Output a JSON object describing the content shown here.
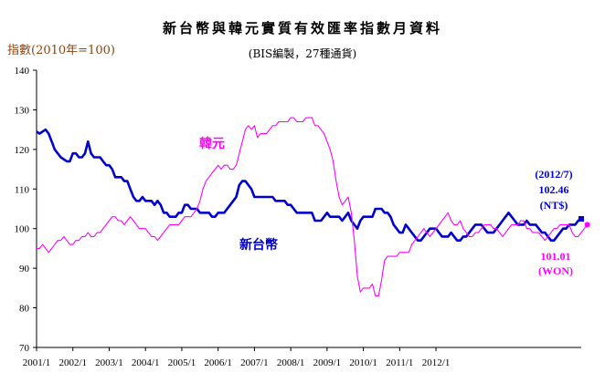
{
  "chart_data": {
    "type": "line",
    "title": "新台幣與韓元實質有效匯率指數月資料",
    "subtitle": "(BIS編製，27種通貨)",
    "ylabel": "指數(2010年=100)",
    "ylim": [
      70,
      140
    ],
    "yticks": [
      70,
      80,
      90,
      100,
      110,
      120,
      130,
      140
    ],
    "x_range": [
      "2001/1",
      "2012/7"
    ],
    "xticks": [
      "2001/1",
      "2002/1",
      "2003/1",
      "2004/1",
      "2005/1",
      "2006/1",
      "2007/1",
      "2008/1",
      "2009/1",
      "2010/1",
      "2011/1",
      "2012/1"
    ],
    "grid": false,
    "series": [
      {
        "name": "新台幣",
        "color": "#0000cc",
        "values": [
          124.5,
          124,
          124.5,
          125,
          124,
          122,
          120,
          119,
          118,
          117.5,
          117,
          117,
          119,
          119,
          118,
          118,
          119,
          122,
          119,
          118,
          118,
          118,
          117,
          116,
          116,
          115,
          113,
          113,
          113,
          112,
          112,
          110,
          108,
          107,
          107,
          108,
          107,
          107,
          107,
          106,
          107,
          106,
          104,
          104,
          103,
          103,
          103,
          104,
          104,
          106,
          106,
          105,
          105,
          105,
          104,
          104,
          104,
          104,
          103,
          103,
          104,
          104,
          104,
          105,
          106,
          107,
          108,
          111,
          112,
          112,
          111,
          110,
          108,
          108,
          108,
          108,
          108,
          108,
          108,
          107,
          107,
          107,
          107,
          106,
          106,
          105,
          104,
          104,
          104,
          104,
          104,
          104,
          102,
          102,
          102,
          103,
          104,
          103,
          103,
          103,
          103,
          102,
          103,
          104,
          102,
          101,
          100,
          102,
          103,
          103,
          103,
          103,
          105,
          105,
          105,
          104,
          104,
          103,
          101,
          100,
          99,
          99,
          101,
          100,
          99,
          98,
          97,
          97,
          98,
          99,
          100,
          100,
          100,
          99,
          98,
          98,
          98,
          99,
          98,
          97,
          97,
          98,
          98,
          99,
          100,
          101,
          101,
          101,
          100,
          99,
          99,
          99,
          100,
          101,
          102,
          103,
          104,
          103,
          102,
          101,
          101,
          101,
          102,
          101,
          101,
          101,
          100,
          99,
          99,
          98,
          97,
          97,
          98,
          99,
          100,
          100,
          101,
          101,
          101,
          102,
          102.46
        ],
        "label_lines": [
          "(2012/7)",
          "102.46",
          "(NT$)"
        ]
      },
      {
        "name": "韓元",
        "color": "#ff00ff",
        "values": [
          95,
          95,
          96,
          95,
          94,
          95,
          96,
          97,
          97,
          98,
          97,
          96,
          96,
          97,
          97,
          98,
          98,
          99,
          98,
          98,
          99,
          99,
          100,
          101,
          102,
          103,
          103,
          102,
          102,
          101,
          102,
          103,
          102,
          101,
          100,
          100,
          100,
          99,
          98,
          98,
          97,
          98,
          99,
          100,
          101,
          101,
          101,
          101,
          102,
          103,
          103,
          103,
          104,
          105,
          107,
          110,
          112,
          113,
          114,
          115,
          116,
          115,
          116,
          116,
          115,
          115,
          116,
          119,
          122,
          125,
          126,
          125,
          126,
          123,
          124,
          124,
          124,
          125,
          126,
          126,
          127,
          127,
          127,
          127,
          128,
          128,
          127,
          127,
          127,
          128,
          128,
          128,
          126,
          126,
          125,
          124,
          122,
          120,
          117,
          112,
          108,
          106,
          107,
          108,
          104,
          97,
          88,
          84,
          85,
          85,
          85,
          86,
          83,
          83,
          87,
          92,
          93,
          93,
          93,
          93,
          94,
          94,
          94,
          94,
          96,
          97,
          98,
          99,
          100,
          99,
          98,
          99,
          100,
          101,
          102,
          103,
          104,
          102,
          101,
          101,
          102,
          100,
          99,
          98,
          98,
          99,
          99,
          100,
          101,
          101,
          101,
          100,
          100,
          99,
          98,
          99,
          100,
          101,
          101,
          101,
          102,
          102,
          100,
          100,
          99,
          99,
          99,
          98,
          97,
          98,
          99,
          100,
          100,
          101,
          101,
          101,
          101,
          99,
          98,
          98,
          99,
          100,
          101.01
        ],
        "label_lines": [
          "101.01",
          "(WON)"
        ]
      }
    ]
  }
}
